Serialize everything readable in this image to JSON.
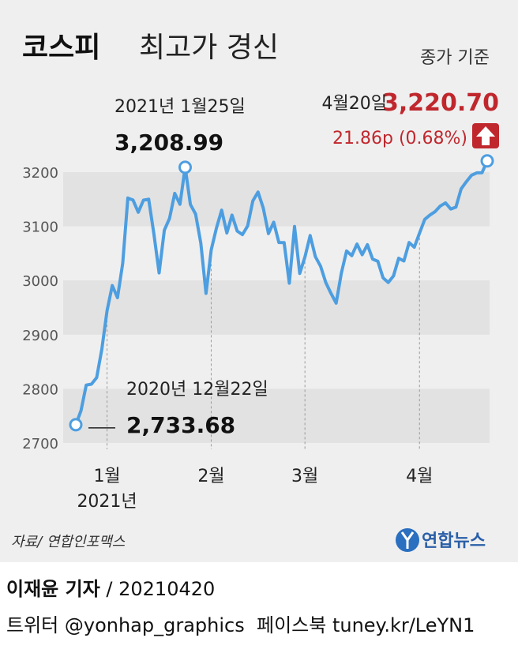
{
  "chart_data": {
    "type": "line",
    "title": "코스피",
    "title_rest": "최고가 경신",
    "subtitle": "종가 기준",
    "color": "#4d9ee0",
    "ylim": [
      2700,
      3200
    ],
    "yticks": [
      2700,
      2800,
      2900,
      3000,
      3100,
      3200
    ],
    "categories": [
      null,
      null,
      null,
      null,
      null,
      null,
      "1월",
      null,
      null,
      null,
      null,
      null,
      null,
      null,
      null,
      null,
      null,
      null,
      null,
      null,
      null,
      null,
      null,
      null,
      null,
      null,
      "2월",
      null,
      null,
      null,
      null,
      null,
      null,
      null,
      null,
      null,
      null,
      null,
      null,
      null,
      null,
      null,
      null,
      null,
      "3월",
      null,
      null,
      null,
      null,
      null,
      null,
      null,
      null,
      null,
      null,
      null,
      null,
      null,
      null,
      null,
      null,
      null,
      null,
      null,
      null,
      null,
      "4월",
      null,
      null,
      null,
      null,
      null,
      null,
      null,
      null,
      null,
      null,
      null,
      null,
      null
    ],
    "year_label": "2021년",
    "values": [
      2733.68,
      2759.82,
      2806.86,
      2808.6,
      2820.51,
      2873.47,
      2944.45,
      2990.57,
      2968.21,
      3031.68,
      3152.18,
      3148.45,
      3125.95,
      3148.29,
      3149.93,
      3085.9,
      3013.93,
      3092.66,
      3114.55,
      3160.84,
      3140.63,
      3208.99,
      3140.31,
      3122.56,
      3069.05,
      2976.21,
      3056.53,
      3096.81,
      3129.68,
      3087.55,
      3120.63,
      3091.24,
      3084.67,
      3100.58,
      3147.0,
      3163.25,
      3133.73,
      3086.66,
      3107.62,
      3070.09,
      3070.0,
      2994.98,
      3099.69,
      3012.95,
      3043.49,
      3082.99,
      3043.87,
      3026.26,
      2996.11,
      2976.12,
      2958.12,
      3013.7,
      3054.39,
      3045.71,
      3067.17,
      3047.5,
      3066.01,
      3039.53,
      3035.46,
      3004.74,
      2996.35,
      3008.33,
      3041.01,
      3036.04,
      3070.0,
      3061.42,
      3087.4,
      3112.8,
      3120.83,
      3127.2,
      3137.51,
      3143.26,
      3131.88,
      3135.59,
      3169.08,
      3182.38,
      3194.33,
      3198.62,
      3198.84,
      3220.7
    ],
    "value_labels": [
      "2,733.68",
      null,
      null,
      null,
      null,
      null,
      null,
      null,
      null,
      null,
      null,
      null,
      null,
      null,
      null,
      null,
      null,
      null,
      null,
      null,
      null,
      "3,208.99",
      null,
      null,
      null,
      null,
      null,
      null,
      null,
      null,
      null,
      null,
      null,
      null,
      null,
      null,
      null,
      null,
      null,
      null,
      null,
      null,
      null,
      null,
      null,
      null,
      null,
      null,
      null,
      null,
      null,
      null,
      null,
      null,
      null,
      null,
      null,
      null,
      null,
      null,
      null,
      null,
      null,
      null,
      null,
      null,
      null,
      null,
      null,
      null,
      null,
      null,
      null,
      null,
      null,
      null,
      null,
      null,
      null,
      "3,220.70"
    ],
    "date_labels": [
      "2020년 12월22일",
      null,
      null,
      null,
      null,
      null,
      null,
      null,
      null,
      null,
      null,
      null,
      null,
      null,
      null,
      null,
      null,
      null,
      null,
      null,
      null,
      "2021년 1월25일",
      null,
      null,
      null,
      null,
      null,
      null,
      null,
      null,
      null,
      null,
      null,
      null,
      null,
      null,
      null,
      null,
      null,
      null,
      null,
      null,
      null,
      null,
      null,
      null,
      null,
      null,
      null,
      null,
      null,
      null,
      null,
      null,
      null,
      null,
      null,
      null,
      null,
      null,
      null,
      null,
      null,
      null,
      null,
      null,
      null,
      null,
      null,
      null,
      null,
      null,
      null,
      null,
      null,
      null,
      null,
      null,
      null,
      "4월20일"
    ],
    "change_label": "21.86p (0.68%)",
    "source": "자료/ 연합인포맥스",
    "logo": "연합뉴스"
  },
  "credits": {
    "reporter": "이재윤 기자",
    "date": " / 20210420",
    "links": "트위터 @yonhap_graphics  페이스북 tuney.kr/LeYN1"
  }
}
